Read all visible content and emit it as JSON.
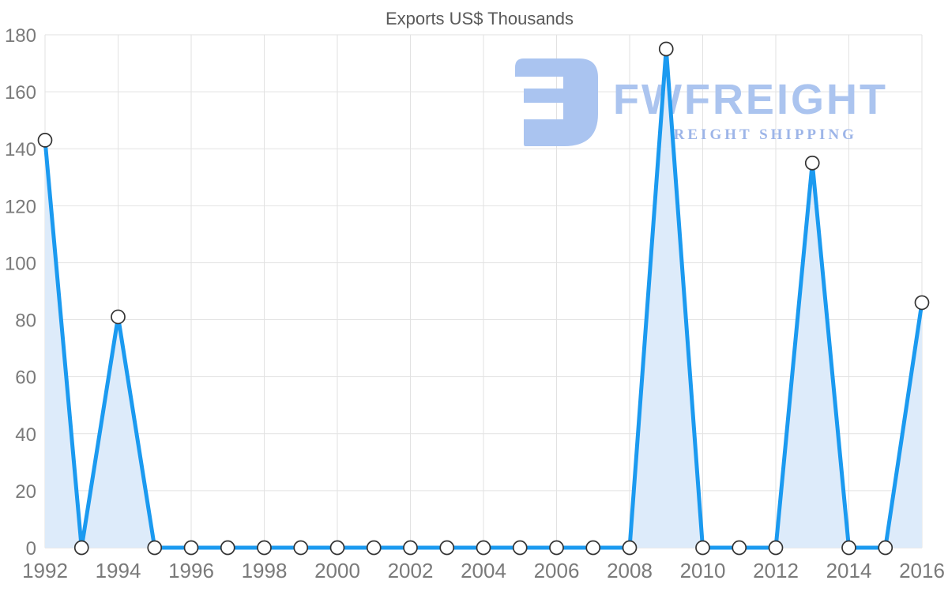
{
  "chart_data": {
    "type": "area",
    "title": "Exports US$ Thousands",
    "x": [
      1992,
      1993,
      1994,
      1995,
      1996,
      1997,
      1998,
      1999,
      2000,
      2001,
      2002,
      2003,
      2004,
      2005,
      2006,
      2007,
      2008,
      2009,
      2010,
      2011,
      2012,
      2013,
      2014,
      2015,
      2016
    ],
    "values": [
      143,
      0,
      81,
      0,
      0,
      0,
      0,
      0,
      0,
      0,
      0,
      0,
      0,
      0,
      0,
      0,
      0,
      175,
      0,
      0,
      0,
      135,
      0,
      0,
      86
    ],
    "x_tick_labels": [
      "1992",
      "1994",
      "1996",
      "1998",
      "2000",
      "2002",
      "2004",
      "2006",
      "2008",
      "2010",
      "2012",
      "2014",
      "2016"
    ],
    "y_ticks": [
      0,
      20,
      40,
      60,
      80,
      100,
      120,
      140,
      160,
      180
    ],
    "ylim": [
      0,
      180
    ],
    "xlabel": "",
    "ylabel": "",
    "grid": true,
    "legend_position": "none",
    "marker": "open-circle"
  },
  "watermark": {
    "name": "FWFREIGHT",
    "tagline": "FREIGHT SHIPPING",
    "logo_icon": "fwfreight-logo-mark"
  },
  "colors": {
    "line": "#1b9af0",
    "area_fill": "#ddebfa",
    "grid": "#e2e2e2",
    "baseline": "#d6d6d6",
    "axis_text": "#7a7a7a",
    "title_text": "#595959",
    "marker_fill": "#ffffff",
    "marker_stroke": "#333333",
    "watermark": "#abc4ef",
    "watermark_tagline": "#9db5e8",
    "background": "#ffffff"
  }
}
